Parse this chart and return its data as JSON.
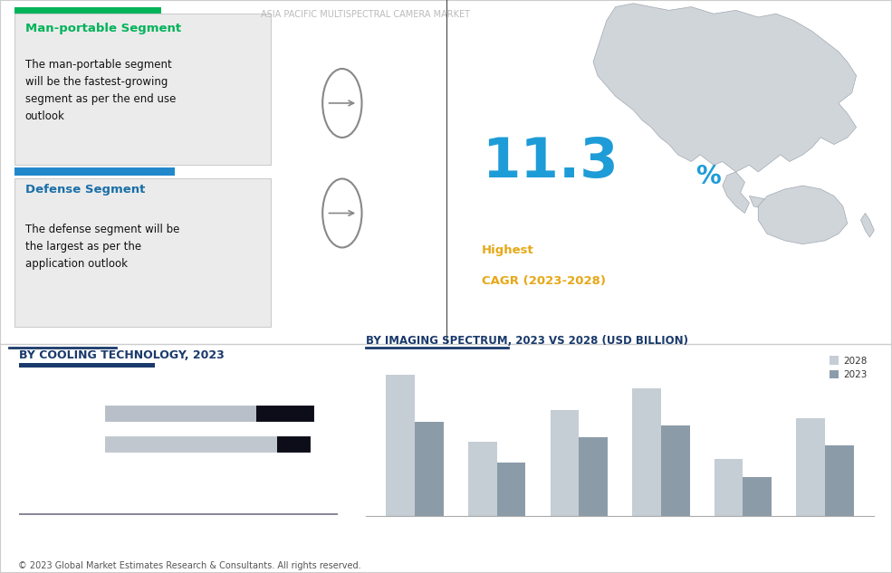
{
  "title": "ASIA PACIFIC MULTISPECTRAL CAMERA MARKET",
  "bg_light": "#f5f5f5",
  "bg_dark": "#0d0d1a",
  "bg_main": "#ffffff",
  "segment1_title": "Man-portable Segment",
  "segment1_title_color": "#00b359",
  "segment1_header_color": "#00b359",
  "segment1_text": "The man-portable segment\nwill be the fastest-growing\nsegment as per the end use\noutlook",
  "segment2_title": "Defense Segment",
  "segment2_title_color": "#1a6fa8",
  "segment2_header_color": "#2288cc",
  "segment2_text": "The defense segment will be\nthe largest as per the\napplication outlook",
  "cagr_value": "11.3",
  "cagr_percent": "%",
  "cagr_label1": "Highest",
  "cagr_label2": "CAGR (2023-2028)",
  "cagr_color": "#e6a817",
  "cagr_num_color": "#1e9cd7",
  "cooling_title": "BY COOLING TECHNOLOGY, 2023",
  "cooling_title_color": "#1a3a6b",
  "spectrum_title": "BY IMAGING SPECTRUM, 2023 VS 2028 (USD BILLION)",
  "spectrum_title_color": "#1a3a6b",
  "spectrum_2023": [
    0.48,
    0.27,
    0.4,
    0.46,
    0.2,
    0.36
  ],
  "spectrum_2028": [
    0.72,
    0.38,
    0.54,
    0.65,
    0.29,
    0.5
  ],
  "spectrum_color_2023": "#8c9ba8",
  "spectrum_color_2028": "#c5cdd5",
  "box_bg": "#ebebeb",
  "box_border": "#cccccc",
  "footer": "© 2023 Global Market Estimates Research & Consultants. All rights reserved.",
  "divider_color": "#cccccc",
  "arrow_color": "#555555",
  "title_color": "#2255aa",
  "map_fill": "#d0d5da",
  "map_edge": "#a0a8b0",
  "legend_2023": "#8c9ba8",
  "legend_2028": "#c5cdd5"
}
